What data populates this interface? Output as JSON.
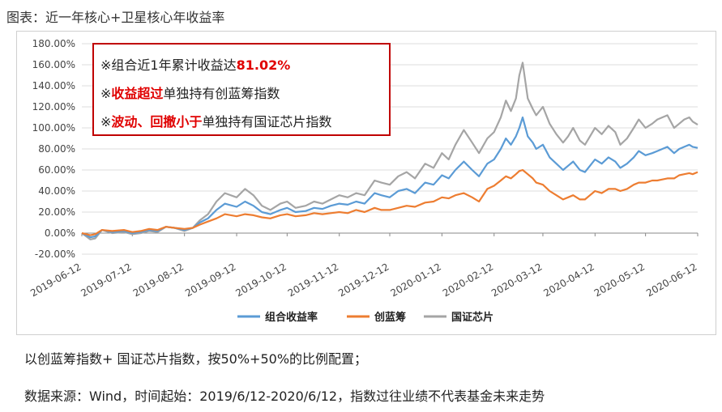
{
  "figure_title": "图表：近一年核心+卫星核心年收益率",
  "callout": {
    "line1": {
      "prefix": "※组合近1年累计收益达",
      "highlight": "81.02%"
    },
    "line2": {
      "highlight": "收益超过",
      "suffix": "单独持有创蓝筹指数"
    },
    "line3": {
      "prefix": "※",
      "highlight": "波动、回撤小于",
      "suffix": "单独持有国证芯片指数"
    },
    "line2_prefix": "※"
  },
  "notes": {
    "note1": "以创蓝筹指数+ 国证芯片指数，按50%+50%的比例配置；",
    "note2": "数据来源：Wind，时间起始：2019/6/12-2020/6/12，指数过往业绩不代表基金未来走势"
  },
  "colors": {
    "portfolio": "#5b9bd5",
    "chuanglanchou": "#ed7d31",
    "chip": "#a5a5a5",
    "callout_border": "#c00000",
    "highlight": "#e00000"
  },
  "chart_data": {
    "type": "line",
    "xlabel": "",
    "ylabel": "",
    "ylim": [
      -20,
      180
    ],
    "yticks": [
      -20,
      0,
      20,
      40,
      60,
      80,
      100,
      120,
      140,
      160,
      180
    ],
    "ytick_labels": [
      "-20.00%",
      "0.00%",
      "20.00%",
      "40.00%",
      "60.00%",
      "80.00%",
      "100.00%",
      "120.00%",
      "140.00%",
      "160.00%",
      "180.00%"
    ],
    "xlim": [
      0,
      366
    ],
    "xticks": [
      0,
      30,
      61,
      92,
      122,
      153,
      183,
      214,
      245,
      274,
      305,
      335,
      366
    ],
    "xtick_labels": [
      "2019-06-12",
      "2019-07-12",
      "2019-08-12",
      "2019-09-12",
      "2019-10-12",
      "2019-11-12",
      "2019-12-12",
      "2020-01-12",
      "2020-02-12",
      "2020-03-12",
      "2020-04-12",
      "2020-05-12",
      "2020-06-12"
    ],
    "legend_position": "bottom",
    "grid": true,
    "series": [
      {
        "name": "组合收益率",
        "x": [
          0,
          5,
          8,
          12,
          18,
          25,
          30,
          35,
          40,
          45,
          50,
          55,
          61,
          66,
          70,
          75,
          80,
          85,
          92,
          97,
          102,
          107,
          112,
          118,
          122,
          127,
          133,
          138,
          143,
          148,
          153,
          158,
          163,
          168,
          174,
          178,
          183,
          188,
          193,
          198,
          204,
          209,
          214,
          218,
          222,
          227,
          232,
          236,
          241,
          245,
          249,
          252,
          255,
          258,
          260,
          262,
          265,
          268,
          270,
          274,
          278,
          282,
          286,
          289,
          292,
          296,
          299,
          302,
          305,
          309,
          313,
          317,
          320,
          324,
          328,
          331,
          335,
          339,
          342,
          345,
          348,
          352,
          355,
          358,
          361,
          363,
          366
        ],
        "y": [
          0,
          -4,
          -3,
          3,
          1,
          2,
          0,
          1,
          3,
          2,
          6,
          5,
          3,
          5,
          10,
          14,
          22,
          28,
          25,
          30,
          26,
          20,
          18,
          22,
          24,
          20,
          21,
          24,
          23,
          26,
          28,
          27,
          30,
          28,
          38,
          36,
          34,
          40,
          42,
          38,
          48,
          46,
          55,
          52,
          60,
          68,
          60,
          54,
          66,
          70,
          80,
          90,
          84,
          92,
          100,
          110,
          92,
          86,
          80,
          84,
          72,
          66,
          60,
          64,
          68,
          60,
          58,
          64,
          70,
          66,
          72,
          68,
          62,
          66,
          72,
          78,
          74,
          76,
          78,
          80,
          82,
          76,
          80,
          82,
          84,
          82,
          81.02
        ]
      },
      {
        "name": "创蓝筹",
        "x": [
          0,
          5,
          8,
          12,
          18,
          25,
          30,
          35,
          40,
          45,
          50,
          55,
          61,
          66,
          70,
          75,
          80,
          85,
          92,
          97,
          102,
          107,
          112,
          118,
          122,
          127,
          133,
          138,
          143,
          148,
          153,
          158,
          163,
          168,
          174,
          178,
          183,
          188,
          193,
          198,
          204,
          209,
          214,
          218,
          222,
          227,
          232,
          236,
          241,
          245,
          249,
          252,
          255,
          258,
          260,
          262,
          265,
          268,
          270,
          274,
          278,
          282,
          286,
          289,
          292,
          296,
          299,
          302,
          305,
          309,
          313,
          317,
          320,
          324,
          328,
          331,
          335,
          339,
          342,
          345,
          348,
          352,
          355,
          358,
          361,
          363,
          366
        ],
        "y": [
          0,
          -2,
          -1,
          3,
          2,
          3,
          1,
          2,
          4,
          3,
          6,
          5,
          4,
          5,
          8,
          11,
          14,
          18,
          16,
          18,
          17,
          15,
          14,
          17,
          18,
          16,
          17,
          19,
          18,
          19,
          20,
          19,
          22,
          20,
          24,
          22,
          22,
          24,
          26,
          25,
          29,
          30,
          34,
          33,
          36,
          38,
          34,
          30,
          42,
          45,
          50,
          54,
          52,
          56,
          59,
          60,
          56,
          52,
          48,
          46,
          40,
          36,
          32,
          34,
          36,
          32,
          32,
          36,
          40,
          38,
          42,
          42,
          40,
          42,
          46,
          48,
          48,
          50,
          50,
          51,
          52,
          52,
          55,
          56,
          57,
          56,
          58
        ]
      },
      {
        "name": "国证芯片",
        "x": [
          0,
          5,
          8,
          12,
          18,
          25,
          30,
          35,
          40,
          45,
          50,
          55,
          61,
          66,
          70,
          75,
          80,
          85,
          92,
          97,
          102,
          107,
          112,
          118,
          122,
          127,
          133,
          138,
          143,
          148,
          153,
          158,
          163,
          168,
          174,
          178,
          183,
          188,
          193,
          198,
          204,
          209,
          214,
          218,
          222,
          227,
          232,
          236,
          241,
          245,
          249,
          252,
          255,
          258,
          260,
          262,
          265,
          268,
          270,
          274,
          278,
          282,
          286,
          289,
          292,
          296,
          299,
          302,
          305,
          309,
          313,
          317,
          320,
          324,
          328,
          331,
          335,
          339,
          342,
          345,
          348,
          352,
          355,
          358,
          361,
          363,
          366
        ],
        "y": [
          0,
          -6,
          -5,
          3,
          0,
          1,
          -1,
          0,
          2,
          1,
          6,
          5,
          2,
          5,
          12,
          18,
          30,
          38,
          34,
          42,
          36,
          26,
          22,
          28,
          30,
          24,
          26,
          30,
          28,
          32,
          36,
          34,
          38,
          36,
          50,
          48,
          46,
          54,
          58,
          52,
          66,
          62,
          76,
          70,
          84,
          98,
          86,
          76,
          90,
          96,
          110,
          126,
          116,
          128,
          150,
          162,
          128,
          118,
          112,
          120,
          104,
          94,
          86,
          92,
          100,
          88,
          84,
          92,
          100,
          94,
          102,
          96,
          84,
          90,
          100,
          108,
          100,
          104,
          108,
          110,
          112,
          100,
          104,
          108,
          110,
          106,
          103
        ]
      }
    ]
  }
}
